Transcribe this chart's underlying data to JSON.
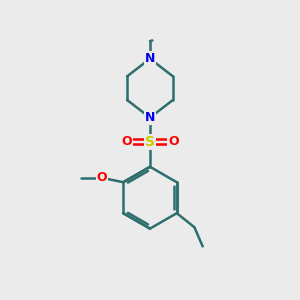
{
  "background_color": "#ebebeb",
  "bond_color": "#2d6e6e",
  "atom_colors": {
    "N": "#0000ee",
    "O": "#ff0000",
    "S": "#cccc00",
    "C": "#2d6e6e"
  },
  "bond_width": 1.8,
  "figsize": [
    3.0,
    3.0
  ],
  "dpi": 100
}
